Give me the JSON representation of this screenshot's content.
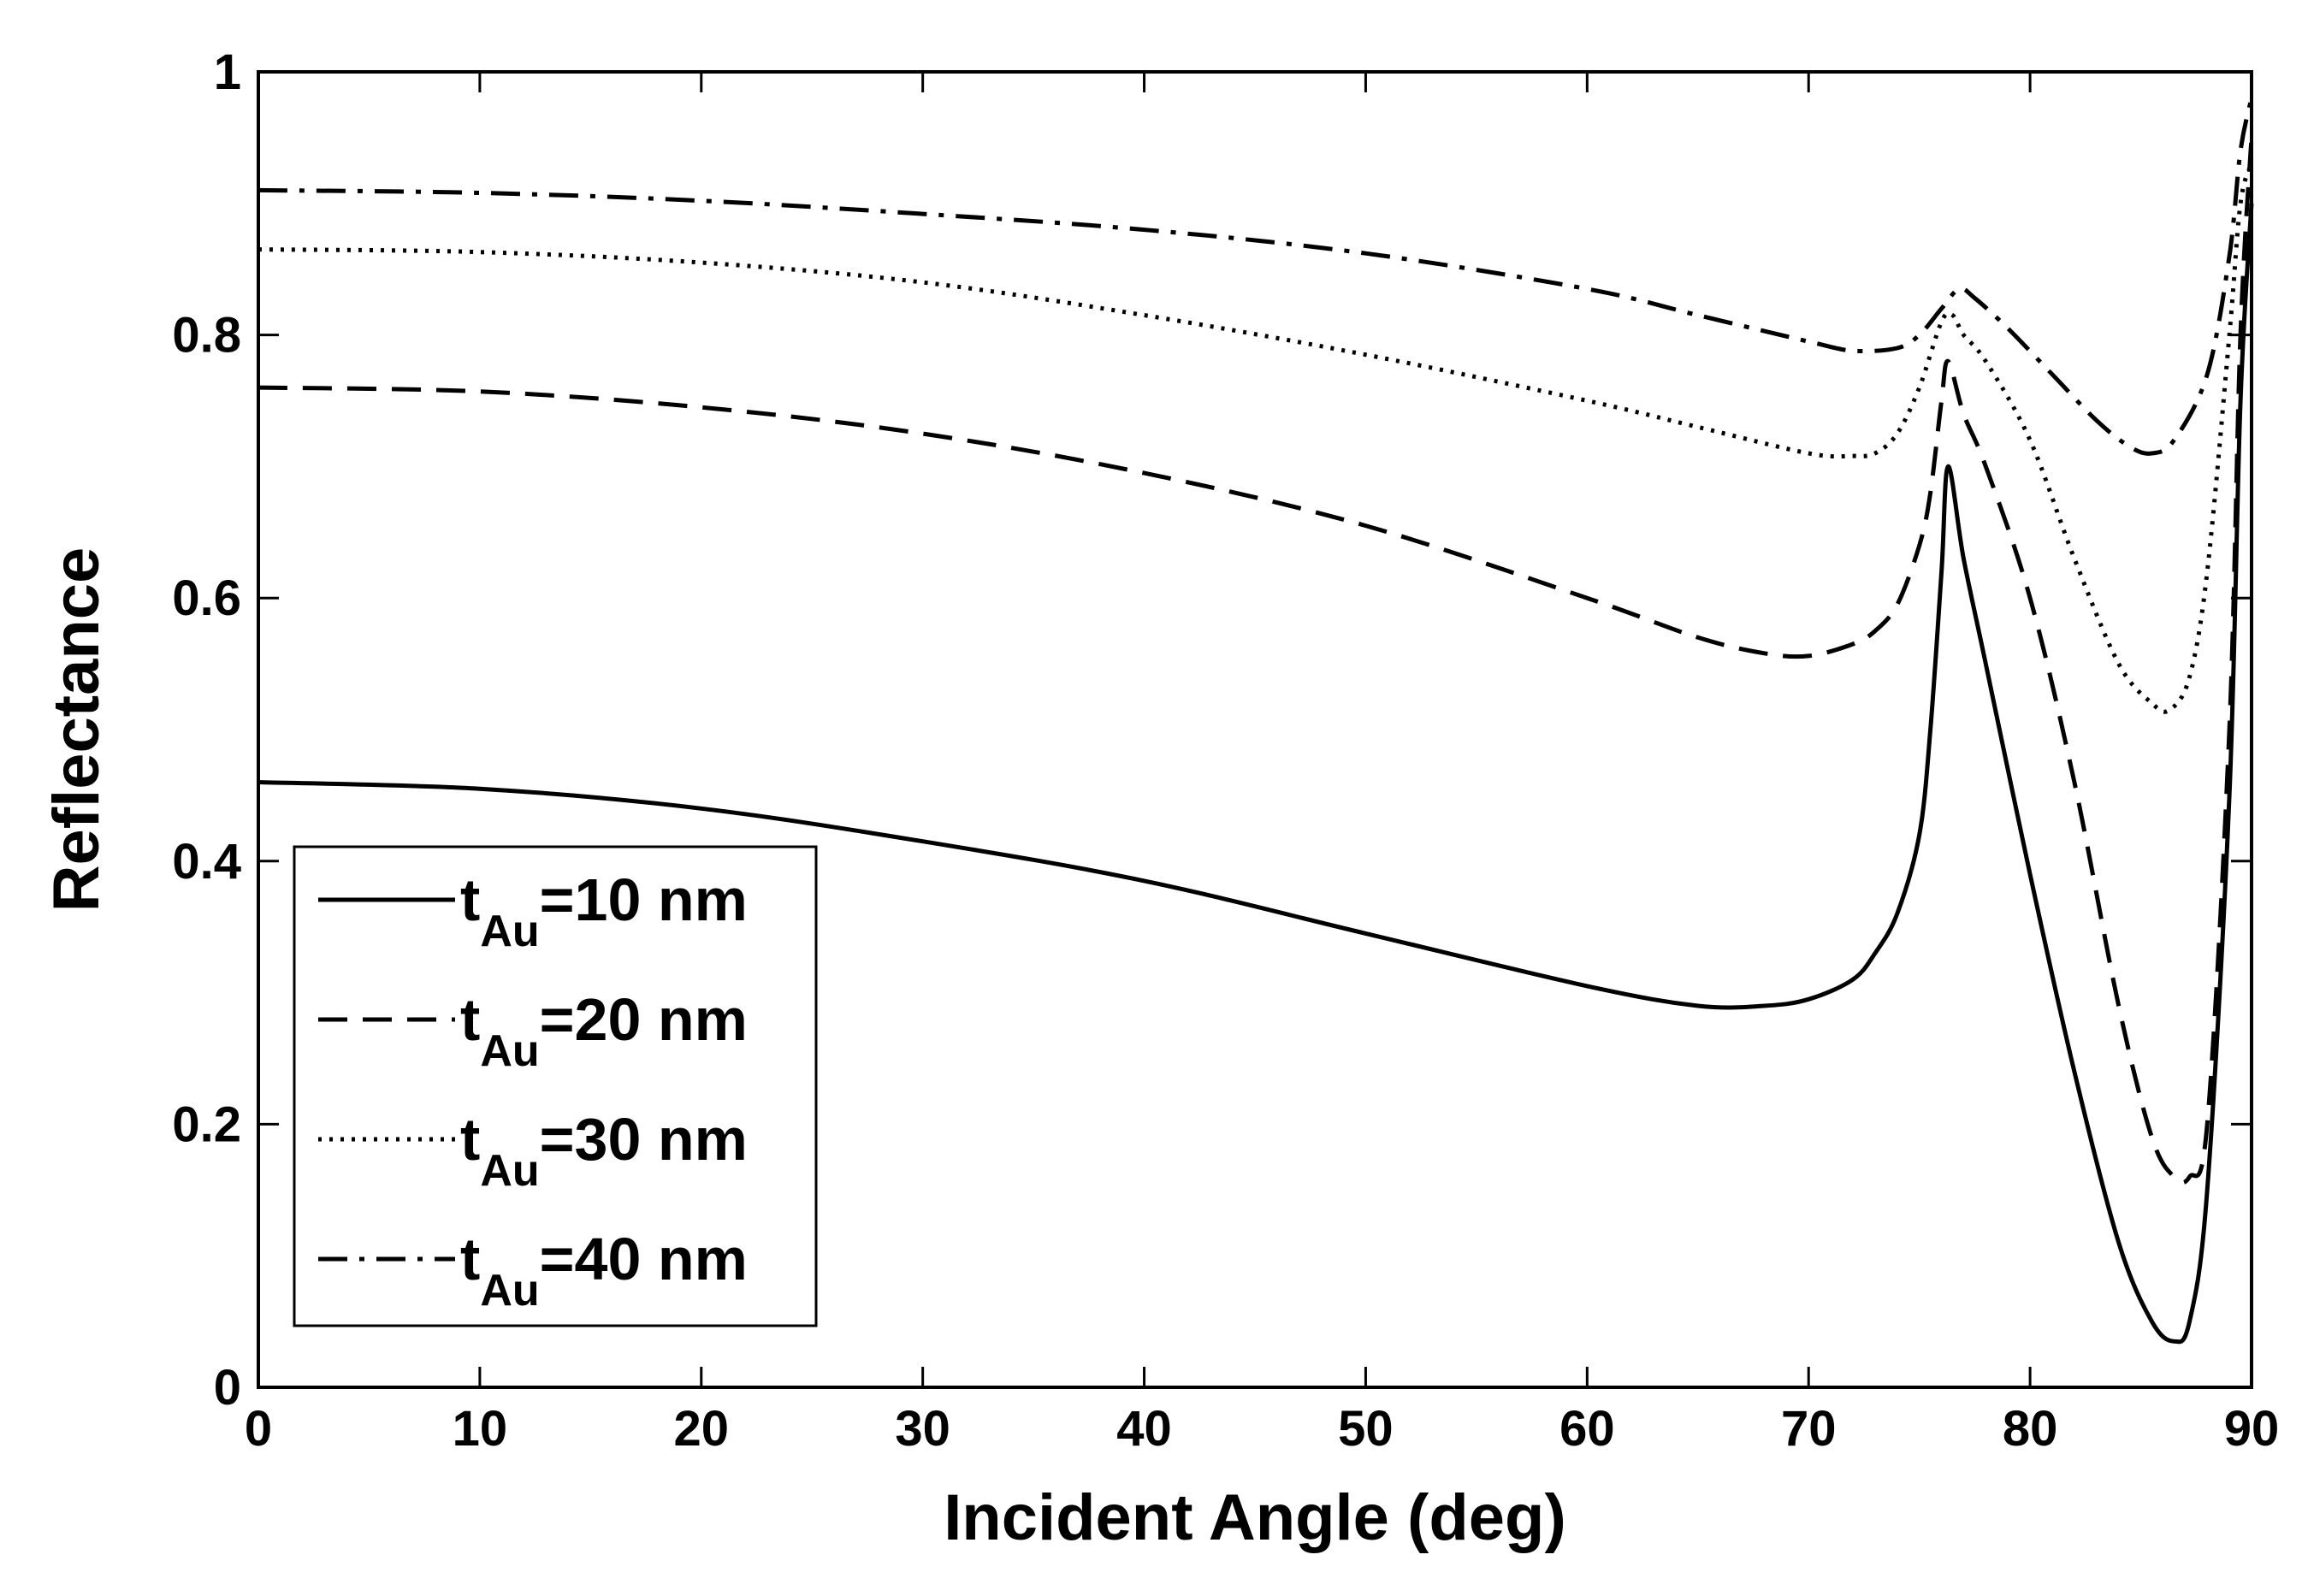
{
  "chart_data": {
    "type": "line",
    "title": "",
    "xlabel": "Incident Angle (deg)",
    "ylabel": "Reflectance",
    "xlim": [
      0,
      90
    ],
    "ylim": [
      0,
      1
    ],
    "xticks": [
      "0",
      "10",
      "20",
      "30",
      "40",
      "50",
      "60",
      "70",
      "80",
      "90"
    ],
    "yticks": [
      "0",
      "0.2",
      "0.4",
      "0.6",
      "0.8",
      "1"
    ],
    "grid": false,
    "legend_position": "lower-left",
    "series": [
      {
        "name": "t_Au=10 nm",
        "legend": {
          "main": "t",
          "sub": "Au",
          "rest": "=10 nm"
        },
        "style": "solid",
        "color": "#000000",
        "x": [
          0,
          10,
          20,
          30,
          40,
          50,
          60,
          65,
          68,
          70,
          72,
          73,
          74,
          75,
          75.5,
          76,
          76.3,
          77,
          78,
          80,
          82,
          84,
          85.5,
          86.5,
          87.2,
          88,
          89,
          89.5,
          90
        ],
        "y": [
          0.46,
          0.455,
          0.44,
          0.415,
          0.385,
          0.345,
          0.305,
          0.29,
          0.29,
          0.295,
          0.31,
          0.33,
          0.36,
          0.42,
          0.5,
          0.62,
          0.7,
          0.63,
          0.55,
          0.39,
          0.24,
          0.11,
          0.05,
          0.035,
          0.05,
          0.15,
          0.45,
          0.75,
          0.9
        ]
      },
      {
        "name": "t_Au=20 nm",
        "legend": {
          "main": "t",
          "sub": "Au",
          "rest": "=20 nm"
        },
        "style": "dashed",
        "color": "#000000",
        "x": [
          0,
          10,
          20,
          30,
          40,
          50,
          60,
          65,
          68,
          70,
          72,
          73,
          74,
          75,
          75.5,
          76,
          76.3,
          77,
          78,
          80,
          82,
          84,
          85.5,
          86.5,
          87.2,
          88,
          89,
          89.5,
          90
        ],
        "y": [
          0.76,
          0.757,
          0.745,
          0.725,
          0.695,
          0.655,
          0.6,
          0.57,
          0.558,
          0.556,
          0.565,
          0.575,
          0.595,
          0.64,
          0.68,
          0.75,
          0.78,
          0.74,
          0.7,
          0.6,
          0.46,
          0.29,
          0.19,
          0.16,
          0.16,
          0.2,
          0.5,
          0.8,
          0.95
        ]
      },
      {
        "name": "t_Au=30 nm",
        "legend": {
          "main": "t",
          "sub": "Au",
          "rest": "=30 nm"
        },
        "style": "dotted",
        "color": "#000000",
        "x": [
          0,
          10,
          20,
          30,
          40,
          50,
          60,
          65,
          70,
          72,
          73,
          74,
          75,
          76,
          76.5,
          77,
          78,
          80,
          82,
          84,
          85.5,
          86.3,
          87.2,
          88,
          89,
          89.5,
          90
        ],
        "y": [
          0.865,
          0.863,
          0.855,
          0.84,
          0.815,
          0.785,
          0.75,
          0.73,
          0.71,
          0.708,
          0.71,
          0.725,
          0.76,
          0.81,
          0.815,
          0.8,
          0.78,
          0.72,
          0.63,
          0.55,
          0.52,
          0.515,
          0.54,
          0.62,
          0.8,
          0.9,
          0.93
        ]
      },
      {
        "name": "t_Au=40 nm",
        "legend": {
          "main": "t",
          "sub": "Au",
          "rest": "=40 nm"
        },
        "style": "dashdot",
        "color": "#000000",
        "x": [
          0,
          10,
          20,
          30,
          40,
          50,
          60,
          65,
          70,
          72,
          74,
          75,
          76,
          76.8,
          77.5,
          79,
          81,
          83,
          84.5,
          85.5,
          86.5,
          88,
          89,
          89.5,
          90
        ],
        "y": [
          0.91,
          0.908,
          0.902,
          0.892,
          0.88,
          0.862,
          0.835,
          0.815,
          0.795,
          0.788,
          0.79,
          0.8,
          0.82,
          0.835,
          0.828,
          0.805,
          0.77,
          0.735,
          0.715,
          0.71,
          0.72,
          0.77,
          0.86,
          0.94,
          0.98
        ]
      }
    ]
  }
}
